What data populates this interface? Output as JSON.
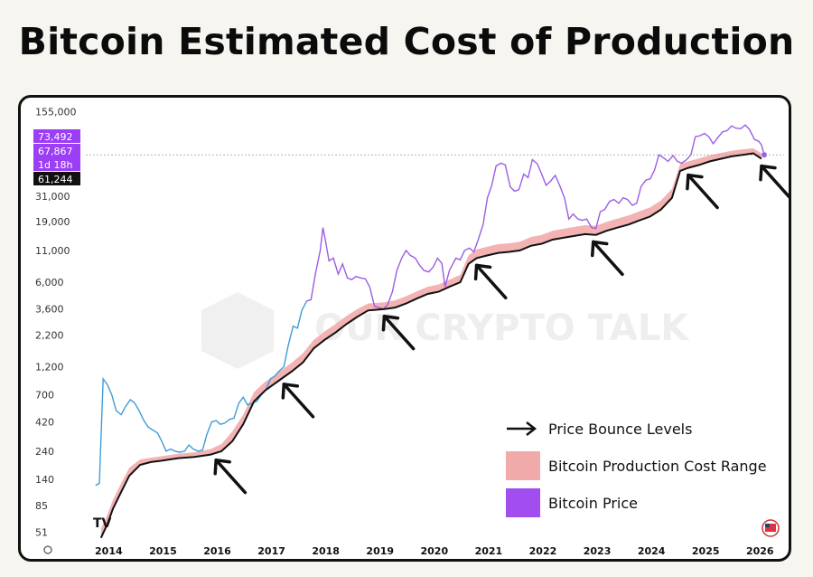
{
  "page": {
    "title": "Bitcoin Estimated Cost of Production"
  },
  "chart_data": {
    "type": "line",
    "title": "Bitcoin Estimated Cost of Production",
    "y_scale": "log",
    "ylim": [
      45,
      170000
    ],
    "xlim": [
      2013.6,
      2026.3
    ],
    "y_ticks": [
      155000,
      31000,
      19000,
      11000,
      6000,
      3600,
      2200,
      1200,
      700,
      420,
      240,
      140,
      85,
      51
    ],
    "x_ticks": [
      "2014",
      "2015",
      "2016",
      "2017",
      "2018",
      "2019",
      "2020",
      "2021",
      "2022",
      "2023",
      "2024",
      "2025",
      "2026"
    ],
    "price_labels": [
      {
        "value": "73,492",
        "color": "#9b3ef5"
      },
      {
        "value": "67,867",
        "color": "#9b3ef5"
      },
      {
        "value": "1d 18h",
        "color": "#9b3ef5"
      },
      {
        "value": "61,244",
        "color": "#111111"
      }
    ],
    "current_price": 67867,
    "colors": {
      "price_early": "#3f9bd8",
      "price_late": "#9b5de5",
      "cost_band": "#f4b3b3",
      "cost_line": "#111111",
      "arrow": "#111111"
    },
    "series": [
      {
        "name": "Bitcoin Price",
        "x": [
          2013.78,
          2013.85,
          2013.92,
          2014.0,
          2014.08,
          2014.16,
          2014.25,
          2014.33,
          2014.42,
          2014.5,
          2014.58,
          2014.67,
          2014.75,
          2014.83,
          2014.92,
          2015.0,
          2015.08,
          2015.16,
          2015.25,
          2015.33,
          2015.42,
          2015.5,
          2015.58,
          2015.67,
          2015.75,
          2015.83,
          2015.92,
          2016.0,
          2016.08,
          2016.16,
          2016.25,
          2016.33,
          2016.42,
          2016.5,
          2016.58,
          2016.67,
          2016.75,
          2016.83,
          2016.92,
          2017.0,
          2017.08,
          2017.16,
          2017.25,
          2017.33,
          2017.42,
          2017.5,
          2017.58,
          2017.67,
          2017.75,
          2017.83,
          2017.92,
          2017.97,
          2018.02,
          2018.08,
          2018.16,
          2018.25,
          2018.33,
          2018.42,
          2018.5,
          2018.58,
          2018.67,
          2018.75,
          2018.83,
          2018.92,
          2019.0,
          2019.08,
          2019.16,
          2019.25,
          2019.33,
          2019.42,
          2019.5,
          2019.58,
          2019.67,
          2019.75,
          2019.83,
          2019.92,
          2020.0,
          2020.08,
          2020.16,
          2020.22,
          2020.3,
          2020.42,
          2020.5,
          2020.58,
          2020.67,
          2020.75,
          2020.83,
          2020.92,
          2021.0,
          2021.08,
          2021.16,
          2021.25,
          2021.33,
          2021.42,
          2021.5,
          2021.58,
          2021.67,
          2021.75,
          2021.83,
          2021.92,
          2022.0,
          2022.08,
          2022.16,
          2022.25,
          2022.33,
          2022.42,
          2022.5,
          2022.58,
          2022.67,
          2022.75,
          2022.83,
          2022.92,
          2023.0,
          2023.08,
          2023.16,
          2023.25,
          2023.33,
          2023.42,
          2023.5,
          2023.58,
          2023.67,
          2023.75,
          2023.83,
          2023.92,
          2024.0,
          2024.08,
          2024.16,
          2024.25,
          2024.33,
          2024.42,
          2024.5,
          2024.58,
          2024.67,
          2024.75,
          2024.83,
          2024.92,
          2025.0,
          2025.08,
          2025.16,
          2025.25,
          2025.33,
          2025.42,
          2025.5,
          2025.58,
          2025.67,
          2025.75,
          2025.83,
          2025.92,
          2026.0,
          2026.05,
          2026.1
        ],
        "values": [
          125,
          130,
          950,
          850,
          700,
          520,
          480,
          560,
          640,
          600,
          520,
          430,
          380,
          360,
          340,
          290,
          240,
          250,
          240,
          235,
          240,
          270,
          250,
          240,
          245,
          330,
          420,
          430,
          400,
          410,
          440,
          450,
          600,
          670,
          580,
          600,
          620,
          700,
          780,
          950,
          1000,
          1100,
          1200,
          1800,
          2600,
          2500,
          3500,
          4200,
          4300,
          7000,
          11000,
          17000,
          13000,
          9000,
          9500,
          7000,
          8500,
          6500,
          6300,
          6700,
          6500,
          6400,
          5500,
          3800,
          3700,
          3600,
          3900,
          5000,
          7500,
          9500,
          11000,
          10000,
          9500,
          8300,
          7500,
          7300,
          8000,
          9500,
          8600,
          5500,
          7500,
          9500,
          9200,
          11000,
          11500,
          10700,
          13500,
          18000,
          30000,
          38000,
          55000,
          58000,
          56000,
          37000,
          34000,
          35000,
          47000,
          44000,
          62000,
          57000,
          47000,
          38000,
          41000,
          46000,
          38000,
          30000,
          20000,
          22000,
          20000,
          19500,
          20000,
          17000,
          16700,
          23000,
          24000,
          28000,
          29000,
          27000,
          30000,
          29000,
          26000,
          27000,
          37000,
          42000,
          43000,
          51000,
          68000,
          64000,
          60000,
          67000,
          60000,
          58000,
          62000,
          68000,
          96000,
          98000,
          102000,
          96000,
          84000,
          95000,
          105000,
          108000,
          118000,
          113000,
          112000,
          120000,
          110000,
          91000,
          88000,
          82000,
          67867
        ]
      },
      {
        "name": "Bitcoin Production Cost Range",
        "x": [
          2013.88,
          2014.0,
          2014.1,
          2014.25,
          2014.4,
          2014.6,
          2014.8,
          2015.0,
          2015.3,
          2015.6,
          2015.9,
          2016.1,
          2016.3,
          2016.5,
          2016.7,
          2016.9,
          2017.0,
          2017.2,
          2017.4,
          2017.6,
          2017.8,
          2018.0,
          2018.2,
          2018.4,
          2018.6,
          2018.8,
          2018.95,
          2019.1,
          2019.3,
          2019.5,
          2019.7,
          2019.9,
          2020.1,
          2020.3,
          2020.5,
          2020.65,
          2020.8,
          2021.0,
          2021.2,
          2021.4,
          2021.6,
          2021.8,
          2022.0,
          2022.2,
          2022.4,
          2022.6,
          2022.8,
          2023.0,
          2023.2,
          2023.4,
          2023.6,
          2023.8,
          2024.0,
          2024.2,
          2024.4,
          2024.55,
          2024.7,
          2024.9,
          2025.1,
          2025.3,
          2025.5,
          2025.7,
          2025.9,
          2026.05
        ],
        "low": [
          46,
          60,
          80,
          110,
          150,
          185,
          195,
          200,
          210,
          215,
          225,
          240,
          290,
          400,
          620,
          760,
          820,
          950,
          1100,
          1300,
          1700,
          2000,
          2300,
          2700,
          3100,
          3500,
          3550,
          3600,
          3700,
          4000,
          4400,
          4800,
          5000,
          5500,
          6000,
          8500,
          9500,
          10000,
          10500,
          10700,
          11000,
          12000,
          12500,
          13500,
          14000,
          14500,
          15000,
          14800,
          16000,
          17000,
          18000,
          19500,
          21000,
          24000,
          30000,
          50000,
          53000,
          56000,
          60000,
          63000,
          66000,
          68000,
          70000,
          63000
        ],
        "high": [
          55,
          72,
          95,
          130,
          175,
          205,
          212,
          218,
          228,
          235,
          250,
          275,
          350,
          480,
          740,
          900,
          960,
          1120,
          1300,
          1550,
          2000,
          2350,
          2700,
          3150,
          3600,
          4000,
          4050,
          4100,
          4250,
          4600,
          5050,
          5500,
          5750,
          6300,
          6900,
          10000,
          11200,
          11800,
          12400,
          12600,
          13000,
          14200,
          14800,
          16000,
          16600,
          17200,
          17800,
          17600,
          19000,
          20200,
          21400,
          23200,
          25000,
          28500,
          35500,
          57000,
          60000,
          63500,
          67500,
          70500,
          73500,
          75500,
          77000,
          70000
        ]
      }
    ],
    "bounce_levels_x": [
      2016.0,
      2017.25,
      2019.1,
      2020.8,
      2022.95,
      2024.7,
      2026.05
    ],
    "legend": {
      "position": "bottom-right",
      "items": [
        {
          "label": "Price Bounce Levels",
          "marker": "arrow",
          "color": "#111111"
        },
        {
          "label": "Bitcoin Production Cost Range",
          "marker": "box",
          "color": "#f0aaaa"
        },
        {
          "label": "Bitcoin Price",
          "marker": "box",
          "color": "#a14df0"
        }
      ]
    },
    "watermark": "OUR CRYPTO TALK",
    "branding": {
      "tradingview_logo": "TV",
      "flag_icon": "us-flag-icon",
      "settings_icon": "gear-icon"
    }
  }
}
